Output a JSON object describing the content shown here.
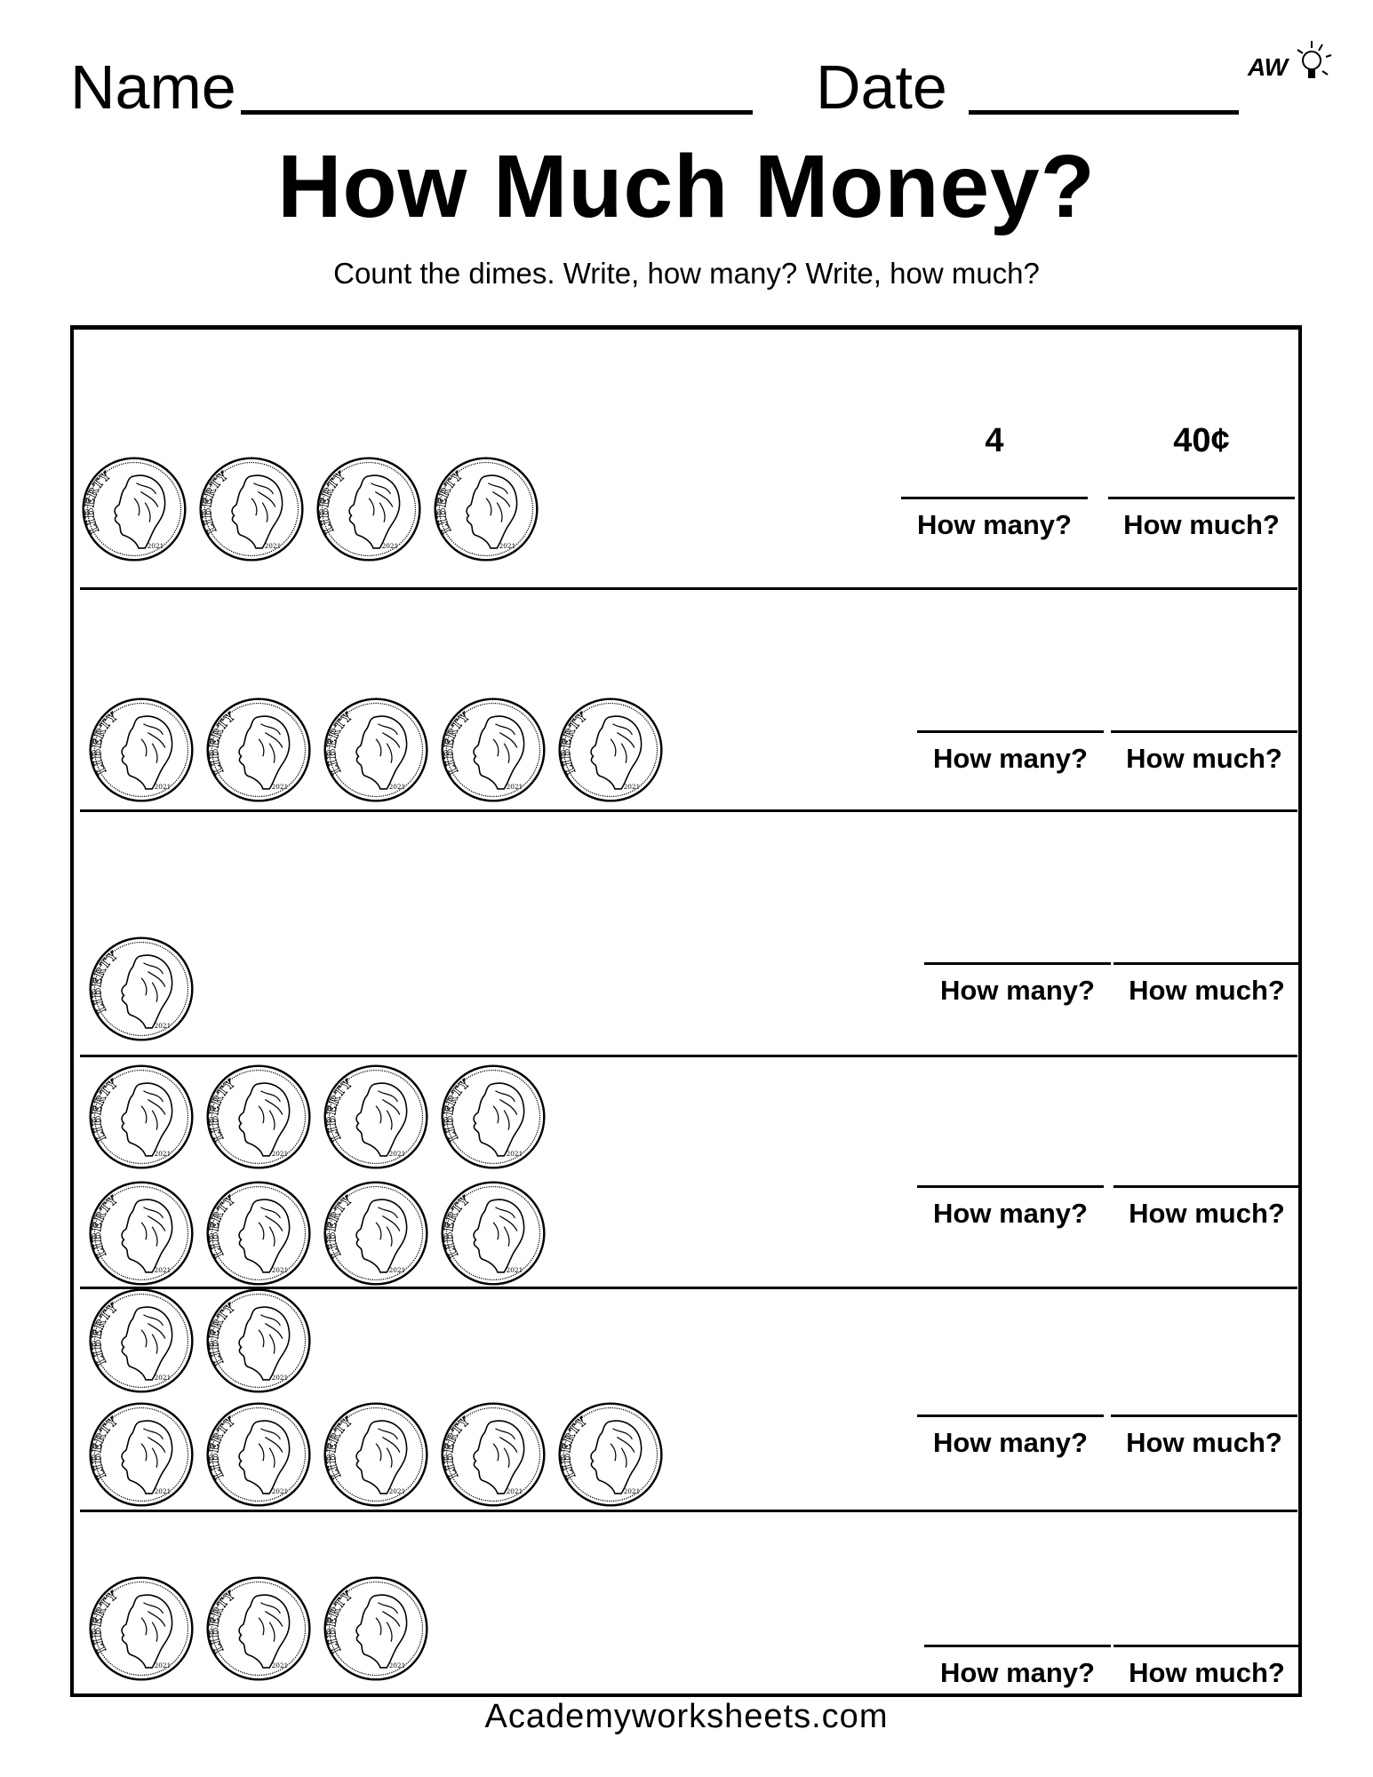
{
  "header": {
    "name_label": "Name",
    "date_label": "Date",
    "logo_text": "AW"
  },
  "title": "How Much Money?",
  "instructions": "Count the dimes. Write, how many? Write, how much?",
  "coin": {
    "type": "dime",
    "inscription": "LIBERTY",
    "year": "2021"
  },
  "rows": [
    {
      "coin_rows": [
        4
      ],
      "how_many_label": "How many?",
      "how_much_label": "How much?",
      "how_many_answer": "4",
      "how_much_answer": "40¢"
    },
    {
      "coin_rows": [
        5
      ],
      "how_many_label": "How many?",
      "how_much_label": "How much?",
      "how_many_answer": "",
      "how_much_answer": ""
    },
    {
      "coin_rows": [
        1
      ],
      "how_many_label": "How many?",
      "how_much_label": "How much?",
      "how_many_answer": "",
      "how_much_answer": ""
    },
    {
      "coin_rows": [
        4,
        4
      ],
      "how_many_label": "How many?",
      "how_much_label": "How much?",
      "how_many_answer": "",
      "how_much_answer": ""
    },
    {
      "coin_rows": [
        2,
        5
      ],
      "how_many_label": "How many?",
      "how_much_label": "How much?",
      "how_many_answer": "",
      "how_much_answer": ""
    },
    {
      "coin_rows": [
        3
      ],
      "how_many_label": "How many?",
      "how_much_label": "How much?",
      "how_many_answer": "",
      "how_much_answer": ""
    }
  ],
  "footer": "Academyworksheets.com"
}
